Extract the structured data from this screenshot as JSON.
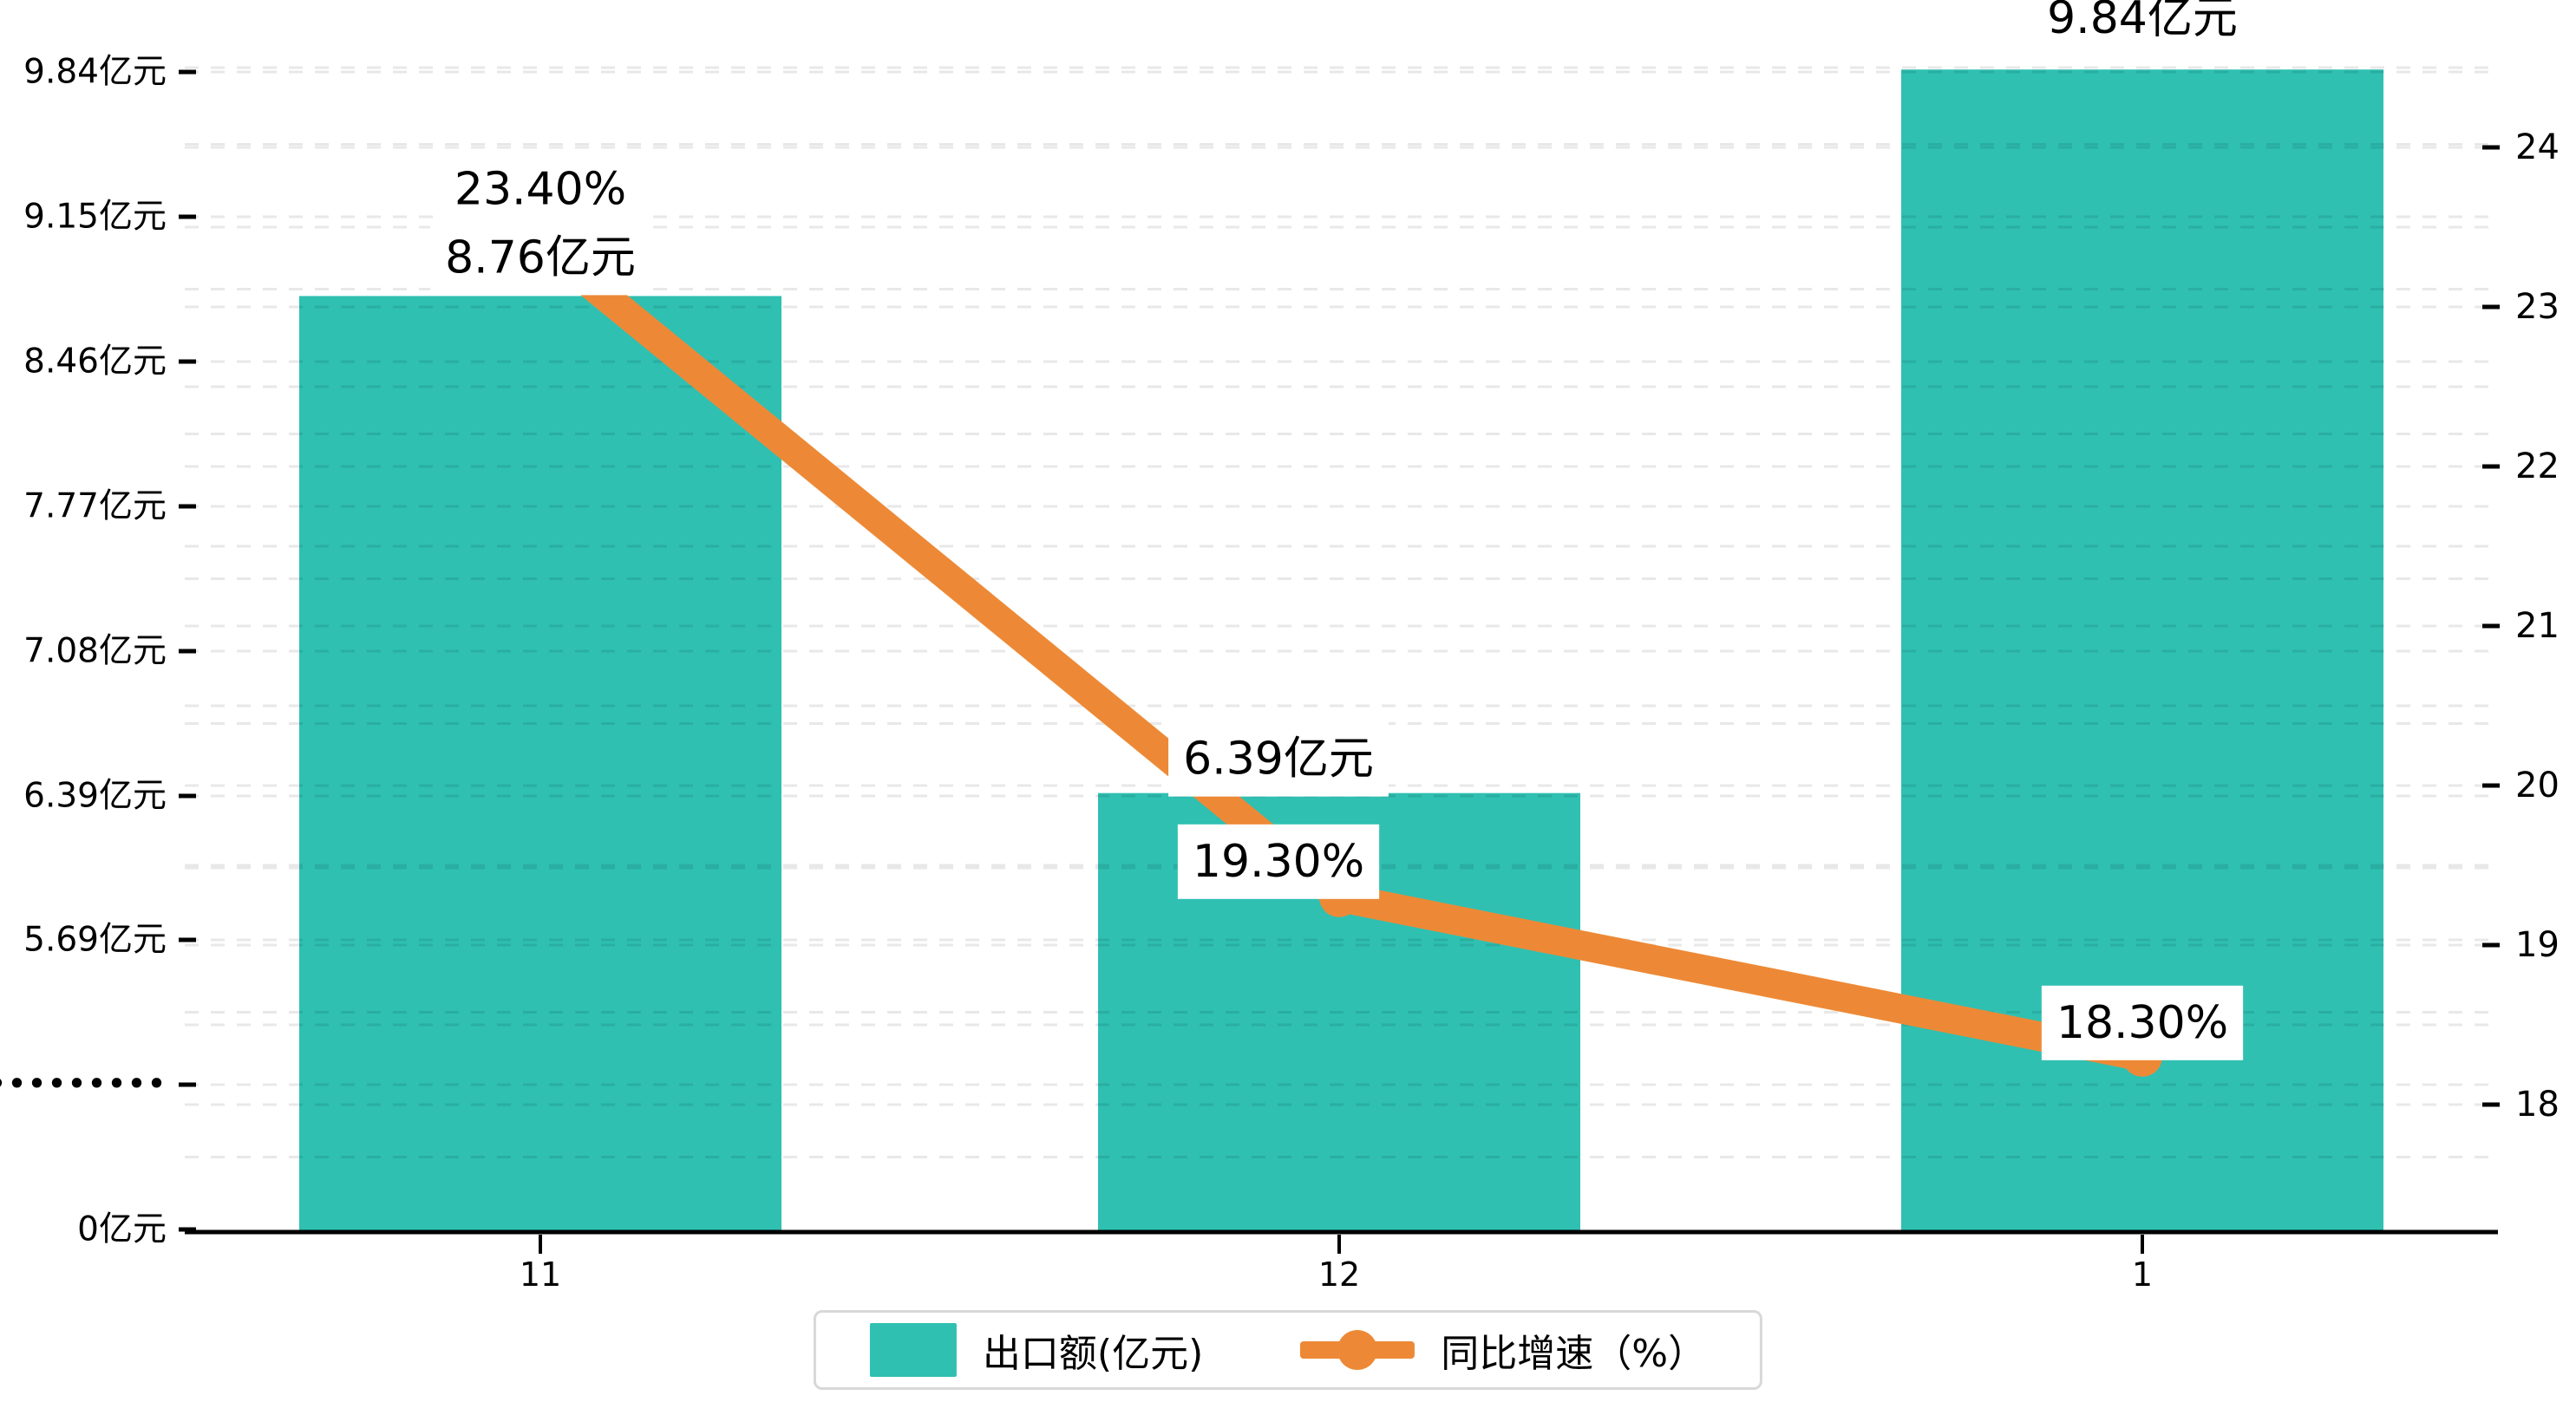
{
  "chart_data": {
    "type": "combo",
    "categories": [
      "11",
      "12",
      "1"
    ],
    "series": [
      {
        "name": "出口额(亿元)",
        "type": "bar",
        "axis": "left",
        "color": "#2fc0b2",
        "values": [
          8.76,
          6.39,
          9.84
        ],
        "labels": [
          "8.76亿元",
          "6.39亿元",
          "9.84亿元"
        ]
      },
      {
        "name": "同比增速（%）",
        "type": "line",
        "axis": "right",
        "color": "#ed8936",
        "values": [
          23.4,
          19.3,
          18.3
        ],
        "labels": [
          "23.40%",
          "19.30%",
          "18.30%"
        ]
      }
    ],
    "left_axis": {
      "tick_labels": [
        "9.84亿元",
        "9.15亿元",
        "8.46亿元",
        "7.77亿元",
        "7.08亿元",
        "6.39亿元",
        "5.69亿元",
        "•••••••••",
        "0亿元"
      ],
      "tick_values": [
        9.84,
        9.15,
        8.46,
        7.77,
        7.08,
        6.39,
        5.69,
        null,
        0
      ],
      "broken_axis": true
    },
    "right_axis": {
      "tick_labels": [
        "24",
        "23",
        "22",
        "21",
        "20",
        "19",
        "18"
      ],
      "range": [
        18,
        24
      ]
    },
    "grid": "dashed-horizontal",
    "legend_position": "bottom-center",
    "title": ""
  },
  "style": {
    "bar_color": "#2fc0b2",
    "line_color": "#ed8936",
    "axis_color": "#000000",
    "grid_color": "rgba(0,0,0,0.09)",
    "label_box_color": "#ffffff",
    "legend_border_color": "#d8d8d8",
    "text_color": "#000000",
    "background": "#ffffff"
  }
}
